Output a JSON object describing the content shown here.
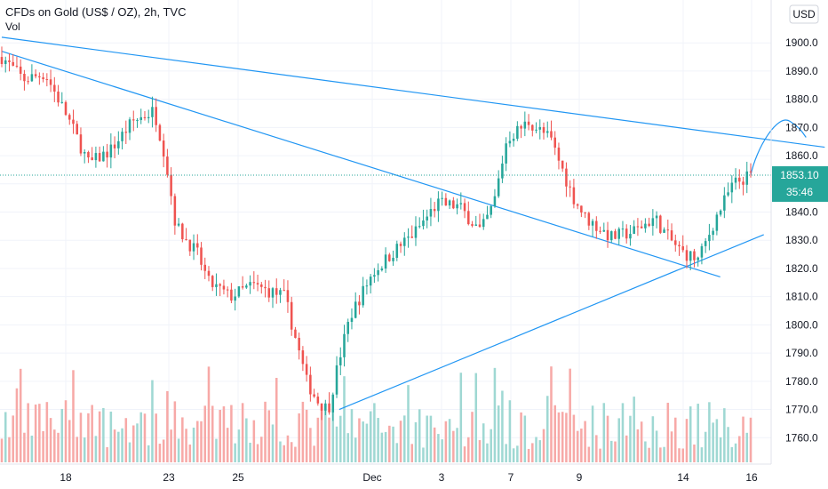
{
  "legend": {
    "title": "CFDs on Gold (US$ / OZ), 2h, TVC",
    "vol_label": "Vol"
  },
  "currency_badge": "USD",
  "last_price": {
    "value": 1853.1,
    "label": "1853.10",
    "countdown": "35:46",
    "color": "#26a69a"
  },
  "colors": {
    "up": "#26a69a",
    "down": "#ef5350",
    "up_vol": "#9fd8d3",
    "down_vol": "#f7a9a7",
    "trendline": "#2196f3",
    "grid": "#f0f3fa"
  },
  "chart_data": {
    "type": "candlestick",
    "ylim": [
      1750,
      1910
    ],
    "yticks": [
      1760,
      1770,
      1780,
      1790,
      1800,
      1810,
      1820,
      1830,
      1840,
      1850,
      1860,
      1870,
      1880,
      1890,
      1900
    ],
    "x_labels": [
      "18",
      "23",
      "25",
      "Dec",
      "3",
      "7",
      "9",
      "14",
      "16"
    ],
    "bars": 200,
    "seed": 7,
    "path": [
      [
        0,
        1895
      ],
      [
        10,
        1887
      ],
      [
        20,
        1889
      ],
      [
        30,
        1874
      ],
      [
        40,
        1857
      ],
      [
        50,
        1862
      ],
      [
        60,
        1872
      ],
      [
        70,
        1876
      ],
      [
        75,
        1860
      ],
      [
        80,
        1835
      ],
      [
        90,
        1825
      ],
      [
        95,
        1815
      ],
      [
        105,
        1810
      ],
      [
        115,
        1814
      ],
      [
        130,
        1810
      ],
      [
        135,
        1795
      ],
      [
        140,
        1780
      ],
      [
        145,
        1773
      ],
      [
        150,
        1770
      ],
      [
        155,
        1788
      ],
      [
        160,
        1803
      ],
      [
        170,
        1818
      ],
      [
        180,
        1826
      ],
      [
        190,
        1833
      ],
      [
        200,
        1843
      ],
      [
        210,
        1842
      ],
      [
        220,
        1833
      ],
      [
        226,
        1843
      ],
      [
        232,
        1866
      ],
      [
        242,
        1872
      ],
      [
        252,
        1866
      ],
      [
        262,
        1846
      ],
      [
        268,
        1838
      ],
      [
        280,
        1831
      ],
      [
        290,
        1833
      ],
      [
        300,
        1838
      ],
      [
        305,
        1832
      ],
      [
        312,
        1826
      ],
      [
        320,
        1823
      ],
      [
        328,
        1838
      ],
      [
        336,
        1850
      ],
      [
        344,
        1853
      ]
    ],
    "trendlines": [
      {
        "from": [
          0,
          1902
        ],
        "to": [
          378,
          1863
        ]
      },
      {
        "from": [
          0,
          1897
        ],
        "to": [
          330,
          1817
        ]
      },
      {
        "from": [
          155,
          1770
        ],
        "to": [
          350,
          1832
        ]
      }
    ],
    "projection": {
      "from": [
        344,
        1853
      ],
      "to": [
        358,
        1869
      ]
    }
  }
}
